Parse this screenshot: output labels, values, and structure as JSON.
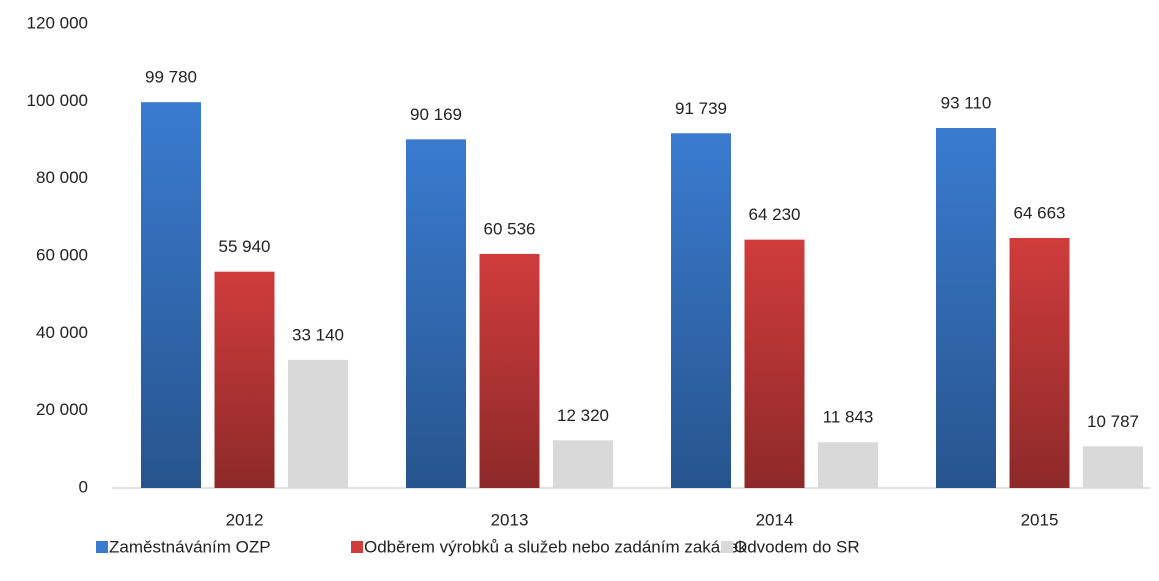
{
  "chart_data": {
    "type": "bar",
    "categories": [
      "2012",
      "2013",
      "2014",
      "2015"
    ],
    "series": [
      {
        "name": "Zaměstnáváním OZP",
        "color": "#3a7bd0",
        "values": [
          99780,
          90169,
          91739,
          93110
        ],
        "value_labels": [
          "99 780",
          "90 169",
          "91 739",
          "93 110"
        ]
      },
      {
        "name": "Odběrem výrobků a služeb nebo zadáním zakázek",
        "color": "#d03c3c",
        "values": [
          55940,
          60536,
          64230,
          64663
        ],
        "value_labels": [
          "55 940",
          "60 536",
          "64 230",
          "64 663"
        ]
      },
      {
        "name": "Odvodem do SR",
        "color": "#d9d9d9",
        "values": [
          33140,
          12320,
          11843,
          10787
        ],
        "value_labels": [
          "33 140",
          "12 320",
          "11 843",
          "10 787"
        ]
      }
    ],
    "ylim": [
      0,
      120000
    ],
    "yticks": [
      0,
      {
        "value": 20000,
        "label": "20 000"
      },
      {
        "value": 40000,
        "label": "40 000"
      },
      {
        "value": 60000,
        "label": "60 000"
      },
      {
        "value": 80000,
        "label": "80 000"
      },
      {
        "value": 100000,
        "label": "100 000"
      },
      {
        "value": 120000,
        "label": "120 000"
      }
    ],
    "grid": false,
    "legend": "bottom"
  }
}
